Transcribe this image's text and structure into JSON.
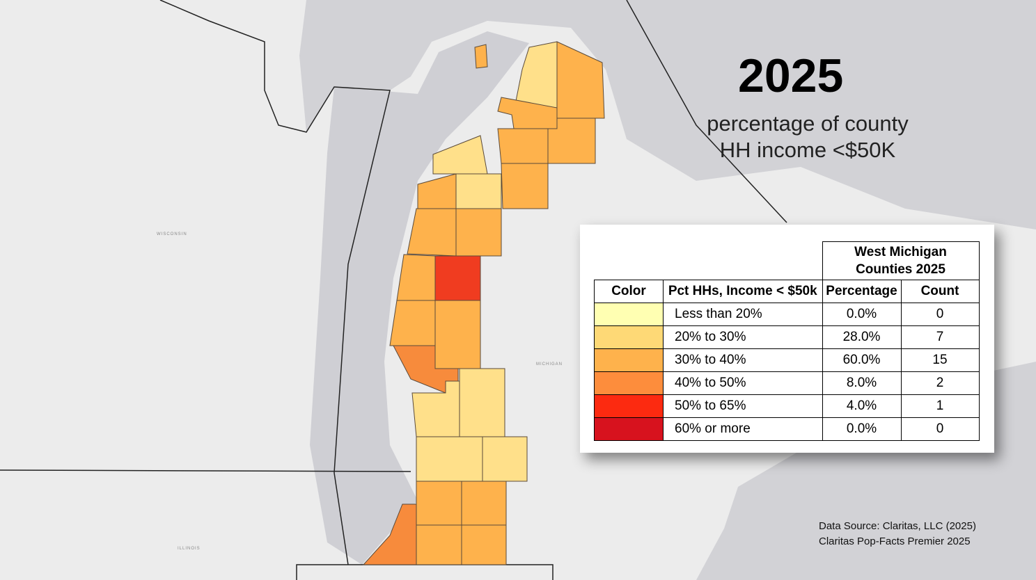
{
  "title": "2025",
  "subtitle": [
    "percentage of county",
    "HH income <$50K"
  ],
  "map_labels": [
    "WISCONSIN",
    "MICHIGAN",
    "ILLINOIS"
  ],
  "table": {
    "group_header": "West Michigan Counties 2025",
    "columns": [
      "Color",
      "Pct HHs, Income < $50k",
      "Percentage",
      "Count"
    ],
    "rows": [
      {
        "color": "#ffffb2",
        "range": "Less than 20%",
        "percentage": "0.0%",
        "count": 0
      },
      {
        "color": "#fed976",
        "range": "20% to 30%",
        "percentage": "28.0%",
        "count": 7
      },
      {
        "color": "#feb24c",
        "range": "30% to 40%",
        "percentage": "60.0%",
        "count": 15
      },
      {
        "color": "#fd8d3c",
        "range": "40% to 50%",
        "percentage": "8.0%",
        "count": 2
      },
      {
        "color": "#fc2a10",
        "range": "50% to 65%",
        "percentage": "4.0%",
        "count": 1
      },
      {
        "color": "#d7121e",
        "range": "60% or more",
        "percentage": "0.0%",
        "count": 0
      }
    ]
  },
  "source": [
    "Data Source: Claritas, LLC (2025)",
    "Claritas Pop-Facts Premier 2025"
  ]
}
